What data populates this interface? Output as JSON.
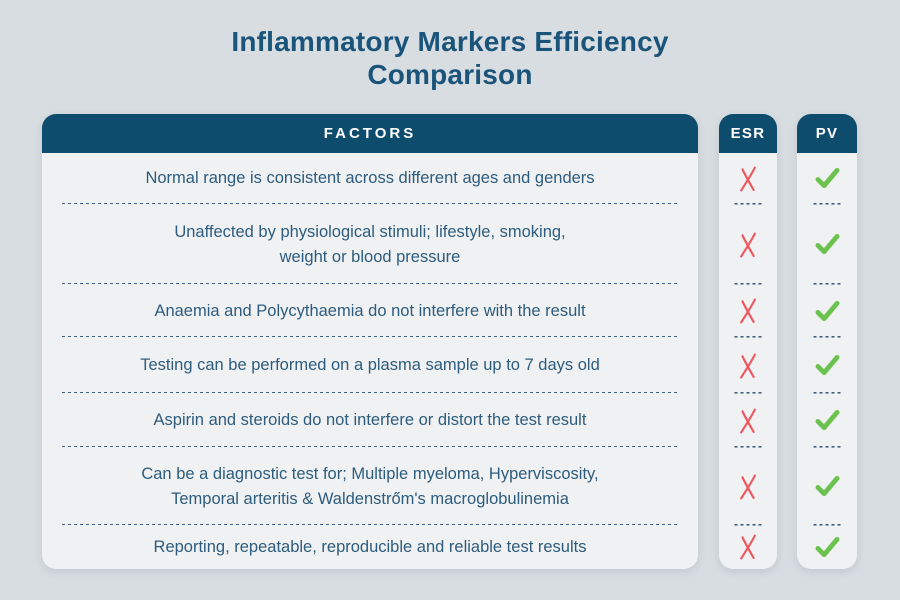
{
  "page_title": "Inflammatory Markers Efficiency Comparison",
  "table": {
    "factors_header": "FACTORS",
    "marker_columns": [
      "ESR",
      "PV"
    ],
    "rows": [
      {
        "factor": "Normal range is consistent across different ages and genders",
        "ESR": "cross",
        "PV": "check"
      },
      {
        "factor": "Unaffected by physiological stimuli; lifestyle, smoking,\nweight or blood pressure",
        "ESR": "cross",
        "PV": "check"
      },
      {
        "factor": "Anaemia and Polycythaemia do not interfere with the result",
        "ESR": "cross",
        "PV": "check"
      },
      {
        "factor": "Testing can be performed on a plasma sample up to 7 days old",
        "ESR": "cross",
        "PV": "check"
      },
      {
        "factor": "Aspirin and steroids do not interfere or distort the test result",
        "ESR": "cross",
        "PV": "check"
      },
      {
        "factor": "Can be a diagnostic test for; Multiple myeloma, Hyperviscosity,\nTemporal arteritis & Waldenstrőm's macroglobulinemia",
        "ESR": "cross",
        "PV": "check"
      },
      {
        "factor": "Reporting, repeatable, reproducible and reliable test results",
        "ESR": "cross",
        "PV": "check"
      }
    ]
  },
  "icons": {
    "cross": "x-mark-icon",
    "check": "check-mark-icon"
  },
  "colors": {
    "bg": "#d8dde1",
    "card": "#f0f1f2",
    "header": "#0e4c6e",
    "title": "#1a547a",
    "text": "#2d5c7e",
    "divider": "#40607f",
    "cross": "#f0545e",
    "check": "#6cc24e"
  },
  "chart_data": {
    "type": "table",
    "title": "Inflammatory Markers Efficiency Comparison",
    "columns": [
      "FACTORS",
      "ESR",
      "PV"
    ],
    "rows": [
      [
        "Normal range is consistent across different ages and genders",
        "no",
        "yes"
      ],
      [
        "Unaffected by physiological stimuli; lifestyle, smoking, weight or blood pressure",
        "no",
        "yes"
      ],
      [
        "Anaemia and Polycythaemia do not interfere with the result",
        "no",
        "yes"
      ],
      [
        "Testing can be performed on a plasma sample up to 7 days old",
        "no",
        "yes"
      ],
      [
        "Aspirin and steroids do not interfere or distort the test result",
        "no",
        "yes"
      ],
      [
        "Can be a diagnostic test for; Multiple myeloma, Hyperviscosity, Temporal arteritis & Waldenstrőm's macroglobulinemia",
        "no",
        "yes"
      ],
      [
        "Reporting, repeatable, reproducible and reliable test results",
        "no",
        "yes"
      ]
    ]
  }
}
